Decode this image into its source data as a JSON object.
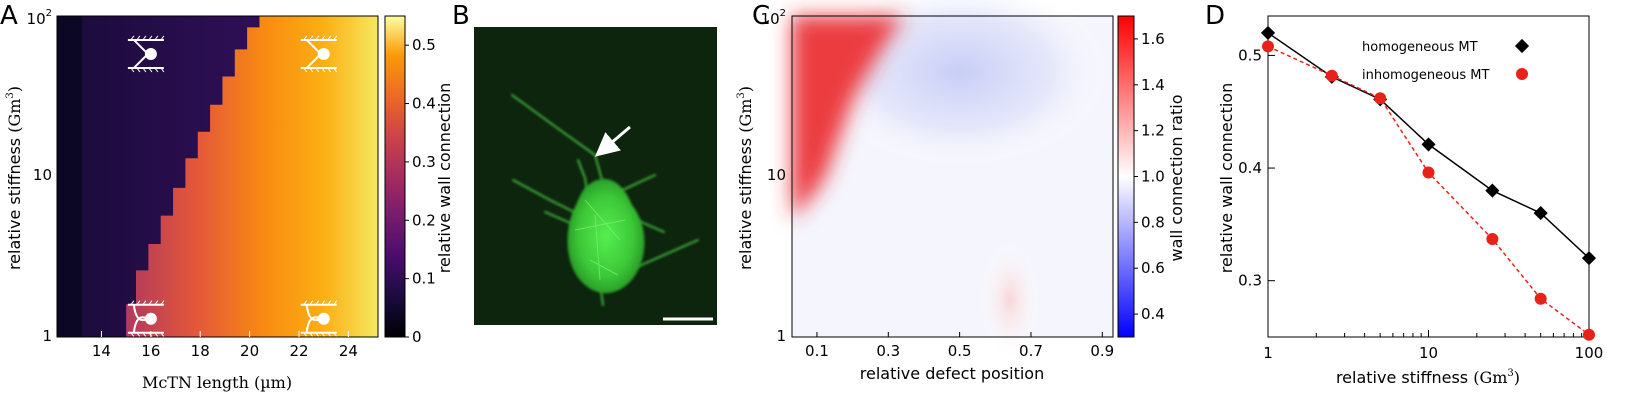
{
  "panels": [
    {
      "letter": "A"
    },
    {
      "letter": "B"
    },
    {
      "letter": "C"
    },
    {
      "letter": "D"
    }
  ],
  "colors": {
    "inferno_low": "#0b0724",
    "inferno_high": "#f7f184",
    "bwr_low": "#1f2dff",
    "bwr_high": "#e6002a",
    "microscopy_bg": "#0d240d",
    "cell_green": "#44d840",
    "homogeneous": "#000000",
    "inhomogeneous": "#e8221b"
  },
  "chart_data": [
    {
      "panel": "A",
      "type": "heatmap",
      "xlabel": "McTN length (µm)",
      "ylabel": "relative stiffness (Gm3)",
      "x_ticks": [
        "14",
        "16",
        "18",
        "20",
        "22",
        "24"
      ],
      "y_ticks": [
        "1",
        "10",
        "10^2"
      ],
      "xlim": [
        12.2,
        25.2
      ],
      "ylim": [
        1,
        100
      ],
      "y_scale": "log",
      "colorbar": {
        "label": "relative wall connection",
        "ticks": [
          "0",
          "0.1",
          "0.2",
          "0.3",
          "0.4",
          "0.5"
        ],
        "range": [
          0,
          0.55
        ],
        "colormap": "inferno"
      },
      "boundary_steps": [
        {
          "stiffness": 1.0,
          "length": 15.0
        },
        {
          "stiffness": 1.6,
          "length": 15.4
        },
        {
          "stiffness": 2.6,
          "length": 15.9
        },
        {
          "stiffness": 3.8,
          "length": 16.4
        },
        {
          "stiffness": 5.7,
          "length": 16.9
        },
        {
          "stiffness": 8.5,
          "length": 17.4
        },
        {
          "stiffness": 13.0,
          "length": 17.9
        },
        {
          "stiffness": 19.0,
          "length": 18.4
        },
        {
          "stiffness": 28.0,
          "length": 18.9
        },
        {
          "stiffness": 42.0,
          "length": 19.4
        },
        {
          "stiffness": 62.0,
          "length": 19.9
        },
        {
          "stiffness": 85.0,
          "length": 20.4
        }
      ],
      "regions": [
        {
          "region": "left strip",
          "length_range": [
            12.2,
            13.2
          ],
          "value": 0.0
        },
        {
          "region": "unconnected",
          "value": 0.05
        },
        {
          "region": "connected, short",
          "value": 0.25
        },
        {
          "region": "connected, long",
          "value": 0.53
        }
      ],
      "inset_icons": [
        {
          "name": "upper-left",
          "length": 15.8,
          "stiffness": 58
        },
        {
          "name": "upper-right",
          "length": 22.8,
          "stiffness": 58
        },
        {
          "name": "lower-left",
          "length": 15.8,
          "stiffness": 1.3
        },
        {
          "name": "lower-right",
          "length": 22.8,
          "stiffness": 1.3
        }
      ]
    },
    {
      "panel": "B",
      "type": "image",
      "content": "confocal micrograph of a cell with McTN protrusions",
      "annotations": [
        "arrow",
        "scale bar"
      ]
    },
    {
      "panel": "C",
      "type": "heatmap",
      "xlabel": "relative defect position",
      "ylabel": "relative stiffness (Gm3)",
      "x_ticks": [
        "0.1",
        "0.3",
        "0.5",
        "0.7",
        "0.9"
      ],
      "y_ticks": [
        "1",
        "10",
        "10^2"
      ],
      "xlim": [
        0.03,
        0.93
      ],
      "ylim": [
        1,
        100
      ],
      "y_scale": "log",
      "colorbar": {
        "label": "wall connection ratio",
        "ticks": [
          "0.4",
          "0.6",
          "0.8",
          "1.0",
          "1.2",
          "1.4",
          "1.6"
        ],
        "range": [
          0.3,
          1.7
        ],
        "colormap": "bwr"
      },
      "features": [
        {
          "feature": "high ratio, upper left",
          "position": 0.05,
          "stiffness": 80,
          "value": 1.65
        },
        {
          "feature": "low ratio, top center",
          "position": 0.5,
          "stiffness": 60,
          "value": 0.85
        },
        {
          "feature": "slight increase",
          "position": 0.68,
          "stiffness": 2.5,
          "value": 1.08
        }
      ]
    },
    {
      "panel": "D",
      "type": "line",
      "xlabel": "relative stiffness (Gm3)",
      "ylabel": "relative wall connection",
      "x_scale": "log",
      "xlim": [
        1,
        100
      ],
      "ylim": [
        0.25,
        0.535
      ],
      "x_ticks": [
        "1",
        "10",
        "100"
      ],
      "y_ticks": [
        "0.3",
        "0.4",
        "0.5"
      ],
      "legend_position": "top-right",
      "series": [
        {
          "name": "homogeneous MT",
          "marker": "diamond",
          "line": "solid",
          "x": [
            1,
            2.5,
            5,
            10,
            25,
            50,
            100
          ],
          "y": [
            0.52,
            0.481,
            0.461,
            0.421,
            0.38,
            0.36,
            0.32
          ]
        },
        {
          "name": "inhomogeneous MT",
          "marker": "circle",
          "line": "dashed",
          "x": [
            1,
            2.5,
            5,
            10,
            25,
            50,
            100
          ],
          "y": [
            0.508,
            0.482,
            0.462,
            0.396,
            0.337,
            0.284,
            0.252
          ]
        }
      ]
    }
  ]
}
